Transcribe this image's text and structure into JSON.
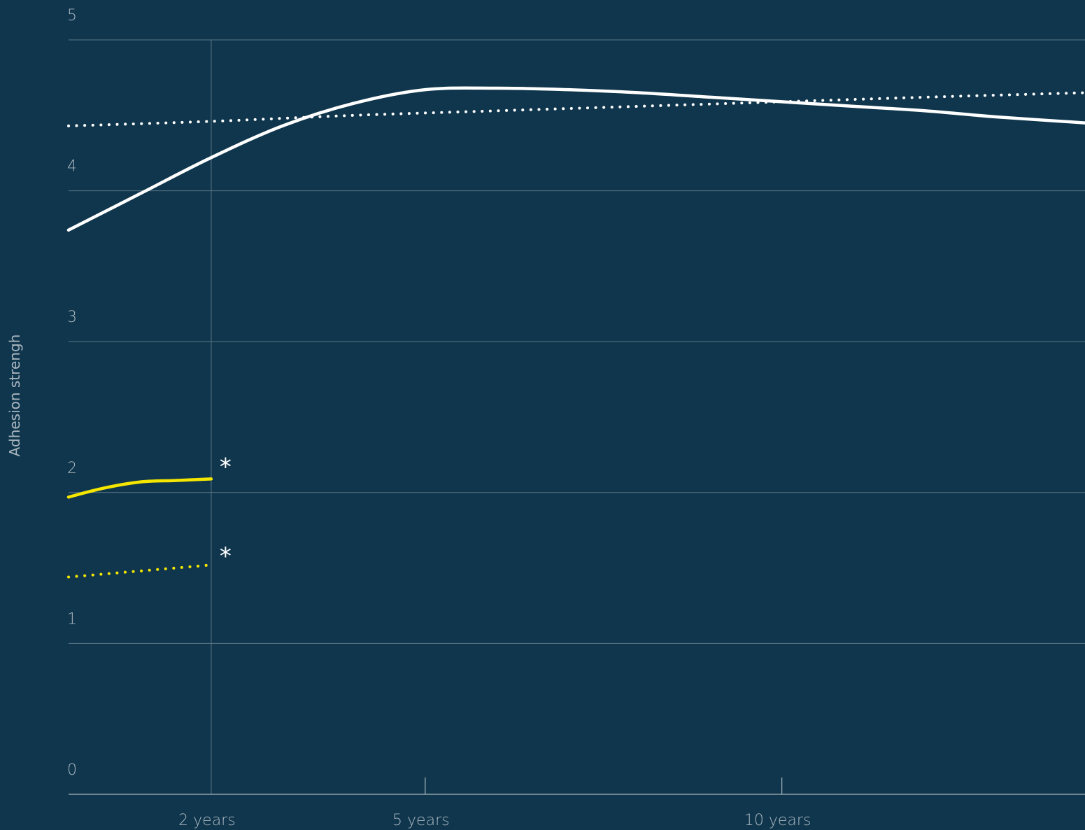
{
  "chart_data": {
    "type": "line",
    "title": "",
    "ylabel": "Adhesion strengh",
    "xlabel": "",
    "ylim": [
      0,
      5
    ],
    "xlim": [
      0.0,
      14.25
    ],
    "grid": true,
    "y_ticks": [
      0,
      1,
      2,
      3,
      4,
      5
    ],
    "x_ticks": [
      {
        "value": 2,
        "label": "2 years"
      },
      {
        "value": 5,
        "label": "5 years"
      },
      {
        "value": 10,
        "label": "10 years"
      }
    ],
    "series": [
      {
        "style": "solid",
        "color": "#ffffff",
        "x": [
          0,
          1,
          2,
          3,
          4,
          5,
          6,
          7,
          8,
          9,
          10,
          11,
          12,
          13,
          14.25
        ],
        "y": [
          3.74,
          3.98,
          4.22,
          4.43,
          4.58,
          4.67,
          4.68,
          4.67,
          4.65,
          4.62,
          4.59,
          4.56,
          4.53,
          4.49,
          4.45
        ]
      },
      {
        "style": "dotted",
        "color": "#ffffff",
        "x": [
          0,
          2,
          4,
          6,
          8,
          10,
          12,
          14.25
        ],
        "y": [
          4.43,
          4.46,
          4.5,
          4.53,
          4.56,
          4.59,
          4.62,
          4.65
        ]
      },
      {
        "style": "solid",
        "color": "#f5e600",
        "x": [
          0,
          0.5,
          1,
          1.5,
          2
        ],
        "y": [
          1.97,
          2.03,
          2.07,
          2.08,
          2.09
        ]
      },
      {
        "style": "dotted",
        "color": "#f5e600",
        "x": [
          0,
          0.5,
          1,
          1.5,
          2
        ],
        "y": [
          1.44,
          1.46,
          1.48,
          1.5,
          1.52
        ]
      }
    ],
    "annotations": [
      {
        "text": "*",
        "x": 2.2,
        "y": 2.2
      },
      {
        "text": "*",
        "x": 2.2,
        "y": 1.61
      }
    ]
  }
}
